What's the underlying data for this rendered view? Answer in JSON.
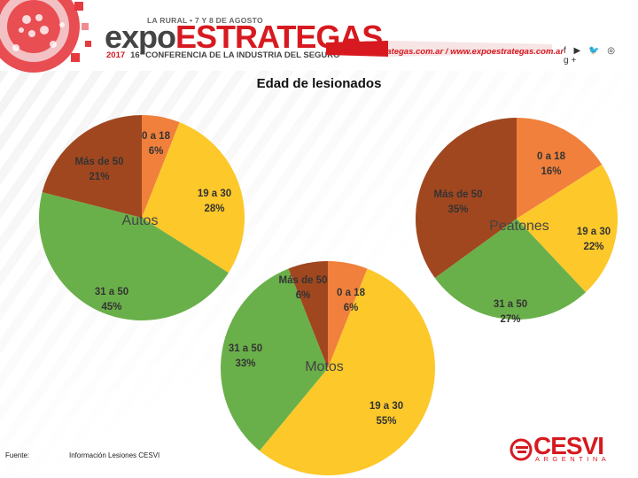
{
  "header": {
    "event_line": "LA RURAL • 7 Y 8 DE AGOSTO",
    "brand_expo": "expo",
    "brand_estrategas": "ESTRATEGAS",
    "year": "2017",
    "subtitle": "16° CONFERENCIA DE LA INDUSTRIA DEL SEGURO",
    "contact": "info@expoestrategas.com.ar / www.expoestrategas.com.ar",
    "social_icons": "f ▶ 🐦 ◎ g+"
  },
  "chart_data": [
    {
      "type": "pie",
      "title": "Edad de lesionados",
      "name": "Autos",
      "categories": [
        "0 a 18",
        "19 a 30",
        "31 a 50",
        "Más de 50"
      ],
      "values": [
        6,
        28,
        45,
        21
      ],
      "value_labels": [
        "6%",
        "28%",
        "45%",
        "21%"
      ]
    },
    {
      "type": "pie",
      "title": "Edad de lesionados",
      "name": "Peatones",
      "categories": [
        "0 a 18",
        "19 a 30",
        "31 a 50",
        "Más de 50"
      ],
      "values": [
        16,
        22,
        27,
        35
      ],
      "value_labels": [
        "16%",
        "22%",
        "27%",
        "35%"
      ]
    },
    {
      "type": "pie",
      "title": "Edad de lesionados",
      "name": "Motos",
      "categories": [
        "0 a 18",
        "19 a 30",
        "31 a 50",
        "Más de 50"
      ],
      "values": [
        6,
        55,
        33,
        6
      ],
      "value_labels": [
        "6%",
        "55%",
        "33%",
        "6%"
      ]
    }
  ],
  "colors": {
    "seg_0_18": "#f0803c",
    "seg_19_30": "#fcc82a",
    "seg_31_50": "#6ab04a",
    "seg_mas_50": "#a0471f",
    "brand_red": "#d71920"
  },
  "page_title": "Edad de lesionados",
  "footer": {
    "label": "Fuente:",
    "source": "Información Lesiones CESVI"
  },
  "cesvi_logo": {
    "name": "CESVI",
    "sub": "ARGENTINA"
  }
}
